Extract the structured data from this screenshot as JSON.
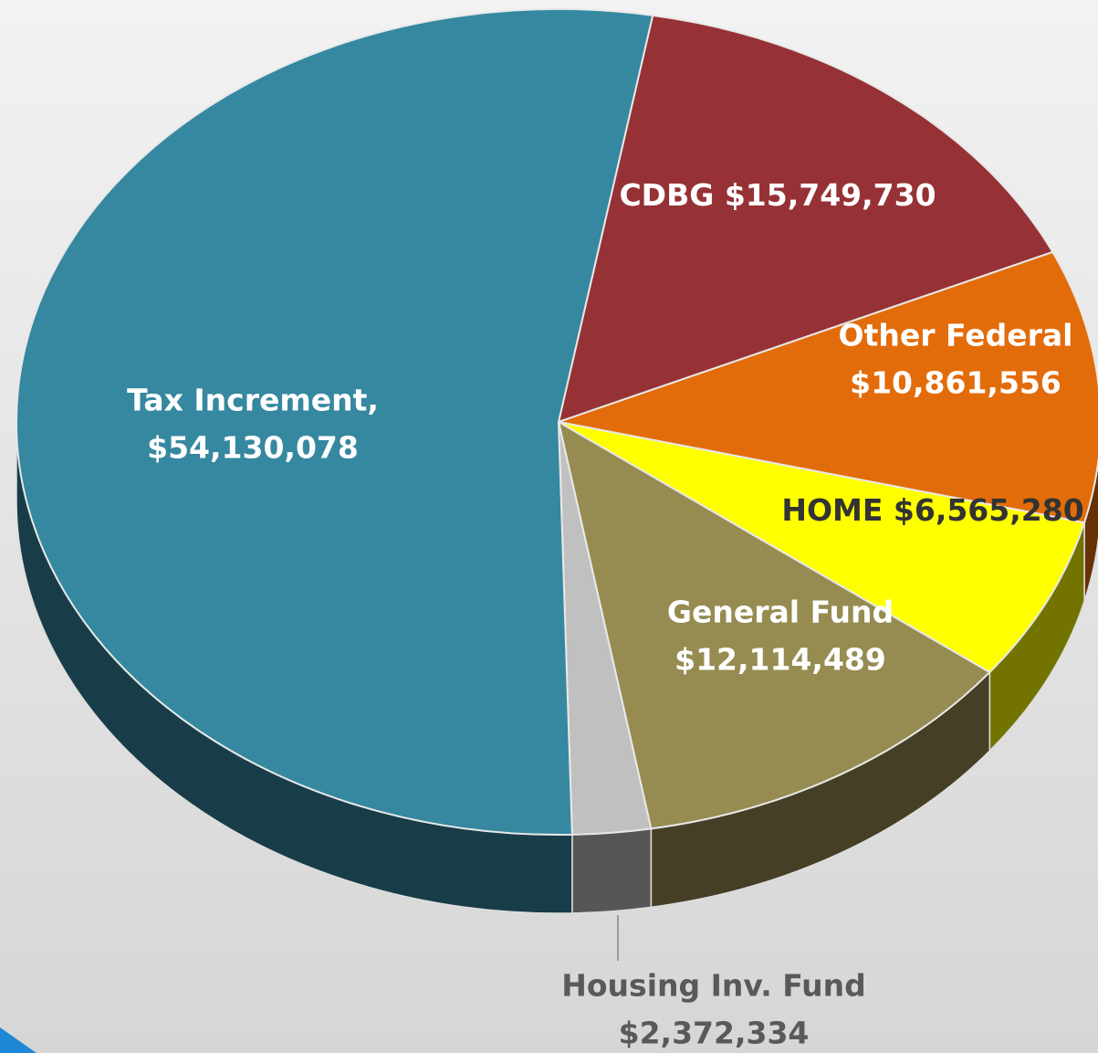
{
  "chart_data": {
    "type": "pie",
    "categories": [
      "CDBG",
      "Other Federal",
      "HOME",
      "General Fund",
      "Housing Inv. Fund",
      "Tax Increment,"
    ],
    "values": [
      15749730,
      10861556,
      6565280,
      12114489,
      2372334,
      54130078
    ],
    "value_labels": [
      "$15,749,730",
      "$10,861,556",
      "$6,565,280",
      "$12,114,489",
      "$2,372,334",
      "$54,130,078"
    ],
    "colors": [
      "#963236",
      "#e36c0a",
      "#ffff00",
      "#968c52",
      "#c0c0c0",
      "#35889f"
    ]
  }
}
